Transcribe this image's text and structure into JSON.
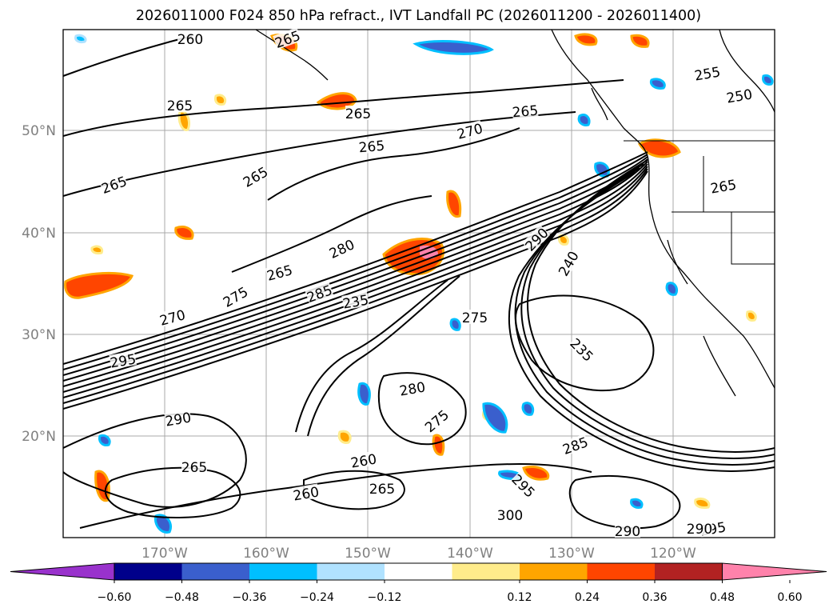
{
  "title": "2026011000 F024 850 hPa refract., IVT Landfall PC (2026011200 - 2026011400)",
  "map": {
    "lat_ticks": [
      "50°N",
      "40°N",
      "30°N",
      "20°N"
    ],
    "lon_ticks": [
      "170°W",
      "160°W",
      "150°W",
      "140°W",
      "130°W",
      "120°W"
    ],
    "contour_labels": [
      "260",
      "265",
      "265",
      "265",
      "265",
      "265",
      "265",
      "270",
      "265",
      "255",
      "250",
      "265",
      "280",
      "265",
      "275",
      "270",
      "285",
      "235",
      "290",
      "240",
      "275",
      "235",
      "295",
      "290",
      "280",
      "275",
      "260",
      "265",
      "260",
      "265",
      "285",
      "295",
      "300",
      "290",
      "295",
      "290"
    ]
  },
  "colorbar": {
    "ticks": [
      "−0.60",
      "−0.48",
      "−0.36",
      "−0.24",
      "−0.12",
      "0.12",
      "0.24",
      "0.36",
      "0.48",
      "0.60"
    ],
    "colors": [
      "#9932cc",
      "#00008b",
      "#3a5fcd",
      "#00bfff",
      "#b0e2ff",
      "#ffffff",
      "#ffec8b",
      "#ffa500",
      "#ff4500",
      "#b22222",
      "#ff82ab"
    ]
  }
}
